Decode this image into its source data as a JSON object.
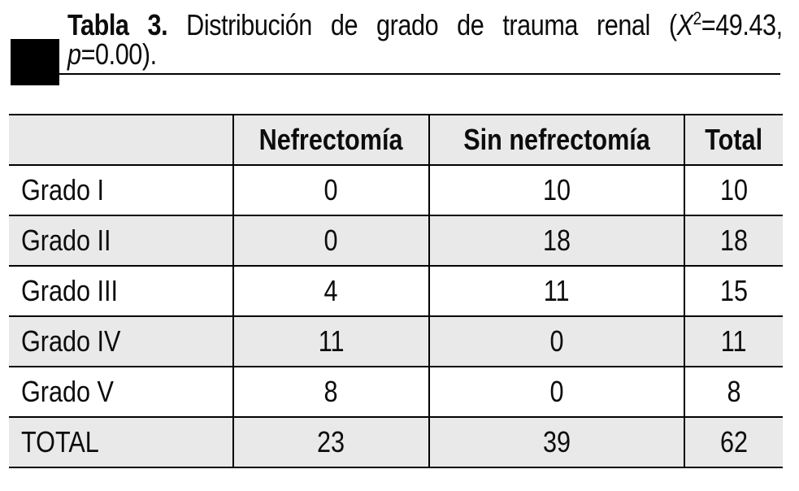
{
  "caption": {
    "label": "Tabla 3.",
    "line1_rest": " Distribución de grado de trauma renal (",
    "x_symbol": "X",
    "x_sup": "2",
    "x_tail": "=49.43,",
    "p_symbol": "p",
    "p_tail": "=0.00)."
  },
  "table": {
    "columns": [
      "",
      "Nefrectomía",
      "Sin nefrectomía",
      "Total"
    ],
    "rows": [
      {
        "label": "Grado I",
        "values": [
          "0",
          "10",
          "10"
        ]
      },
      {
        "label": "Grado II",
        "values": [
          "0",
          "18",
          "18"
        ]
      },
      {
        "label": "Grado III",
        "values": [
          "4",
          "11",
          "15"
        ]
      },
      {
        "label": "Grado IV",
        "values": [
          "11",
          "0",
          "11"
        ]
      },
      {
        "label": "Grado V",
        "values": [
          "8",
          "0",
          "8"
        ]
      },
      {
        "label": "TOTAL",
        "values": [
          "23",
          "39",
          "62"
        ]
      }
    ]
  },
  "colors": {
    "row_shade": "#e9e9e9",
    "border": "#000000",
    "background": "#ffffff",
    "text": "#0c0c0c"
  },
  "chart_data": {
    "type": "table",
    "title": "Tabla 3. Distribución de grado de trauma renal (X2=49.43, p=0.00).",
    "statistic": {
      "chi_square": 49.43,
      "p_value": 0.0
    },
    "columns": [
      "",
      "Nefrectomía",
      "Sin nefrectomía",
      "Total"
    ],
    "rows": [
      [
        "Grado I",
        0,
        10,
        10
      ],
      [
        "Grado II",
        0,
        18,
        18
      ],
      [
        "Grado III",
        4,
        11,
        15
      ],
      [
        "Grado IV",
        11,
        0,
        11
      ],
      [
        "Grado V",
        8,
        0,
        8
      ],
      [
        "TOTAL",
        23,
        39,
        62
      ]
    ]
  }
}
